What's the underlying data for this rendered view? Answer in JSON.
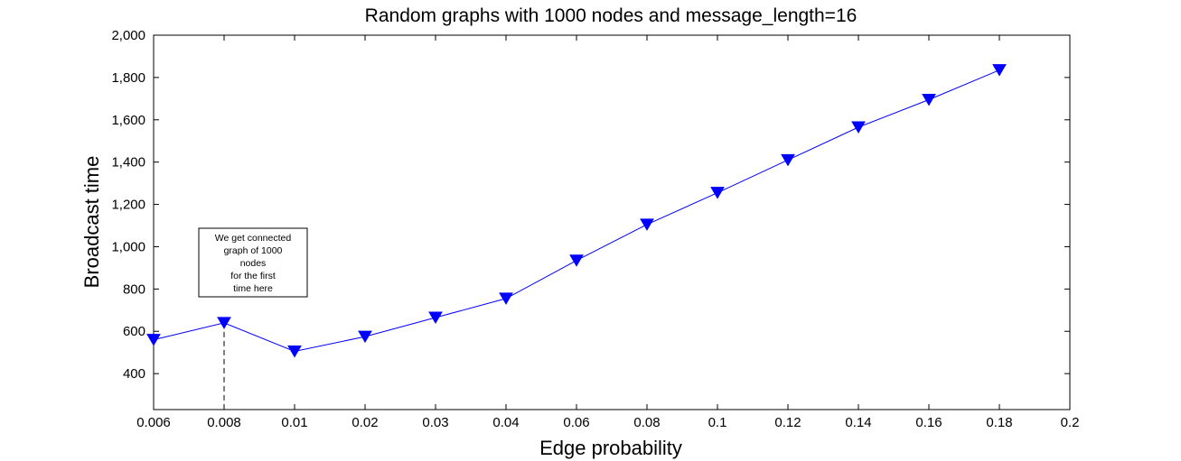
{
  "chart_data": {
    "type": "line",
    "title": "Random graphs with 1000 nodes and message_length=16",
    "xlabel": "Edge probability",
    "ylabel": "Broadcast time",
    "x_scale": "categorical",
    "categories": [
      "0.006",
      "0.008",
      "0.01",
      "0.02",
      "0.03",
      "0.04",
      "0.06",
      "0.08",
      "0.1",
      "0.12",
      "0.14",
      "0.16",
      "0.18",
      "0.2"
    ],
    "series": [
      {
        "marker": "down-triangle",
        "color": "#0000ff",
        "x": [
          "0.006",
          "0.008",
          "0.01",
          "0.02",
          "0.03",
          "0.04",
          "0.06",
          "0.08",
          "0.1",
          "0.12",
          "0.14",
          "0.16",
          "0.18"
        ],
        "values": [
          560,
          640,
          505,
          575,
          665,
          755,
          935,
          1105,
          1255,
          1410,
          1565,
          1695,
          1835
        ]
      }
    ],
    "ylim": [
      230,
      2000
    ],
    "y_ticks": [
      {
        "value": 400,
        "label": "400"
      },
      {
        "value": 600,
        "label": "600"
      },
      {
        "value": 800,
        "label": "800"
      },
      {
        "value": 1000,
        "label": "1,000"
      },
      {
        "value": 1200,
        "label": "1,200"
      },
      {
        "value": 1400,
        "label": "1,400"
      },
      {
        "value": 1600,
        "label": "1,600"
      },
      {
        "value": 1800,
        "label": "1,800"
      },
      {
        "value": 2000,
        "label": "2,000"
      }
    ],
    "grid": false,
    "annotation": {
      "text_lines": [
        "We get connected",
        "graph of 1000",
        "nodes",
        "for the first",
        "time here"
      ],
      "x": "0.008",
      "dashed_drop_line": true
    }
  }
}
